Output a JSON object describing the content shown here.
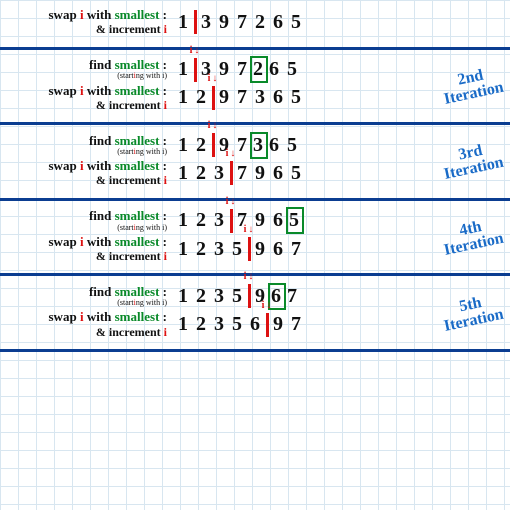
{
  "colors": {
    "divider": "#0b3d91",
    "grid": "#d8e6f0",
    "text": "#111",
    "smallest": "#0a8a2a",
    "i": "#d11",
    "iteration_label": "#1a6bc7",
    "box": "#0a8a2a"
  },
  "labels": {
    "find_prefix": "find ",
    "smallest_word": "smallest",
    "starting_sub": "(starting with i)",
    "swap_prefix": "swap ",
    "i_word": "i",
    "swap_mid": " with ",
    "swap_end": " :",
    "increment": "& increment ",
    "colon": " :",
    "pointer": "i↓"
  },
  "iterations": [
    {
      "label": "",
      "rows": [
        {
          "type": "swap",
          "cursor_after": 1,
          "values": [
            "1",
            "3",
            "9",
            "7",
            "2",
            "6",
            "5"
          ],
          "ptr_on": null,
          "box_on": null
        }
      ]
    },
    {
      "label": "2nd\nIteration",
      "rows": [
        {
          "type": "find",
          "cursor_after": 1,
          "values": [
            "1",
            "3",
            "9",
            "7",
            "2",
            "6",
            "5"
          ],
          "ptr_on": 1,
          "box_on": 4
        },
        {
          "type": "swap",
          "cursor_after": 2,
          "values": [
            "1",
            "2",
            "9",
            "7",
            "3",
            "6",
            "5"
          ],
          "ptr_on": 2,
          "box_on": null
        }
      ]
    },
    {
      "label": "3rd\nIteration",
      "rows": [
        {
          "type": "find",
          "cursor_after": 2,
          "values": [
            "1",
            "2",
            "9",
            "7",
            "3",
            "6",
            "5"
          ],
          "ptr_on": 2,
          "box_on": 4
        },
        {
          "type": "swap",
          "cursor_after": 3,
          "values": [
            "1",
            "2",
            "3",
            "7",
            "9",
            "6",
            "5"
          ],
          "ptr_on": 3,
          "box_on": null
        }
      ]
    },
    {
      "label": "4th\nIteration",
      "rows": [
        {
          "type": "find",
          "cursor_after": 3,
          "values": [
            "1",
            "2",
            "3",
            "7",
            "9",
            "6",
            "5"
          ],
          "ptr_on": 3,
          "box_on": 6
        },
        {
          "type": "swap",
          "cursor_after": 4,
          "values": [
            "1",
            "2",
            "3",
            "5",
            "9",
            "6",
            "7"
          ],
          "ptr_on": 4,
          "box_on": null
        }
      ]
    },
    {
      "label": "5th\nIteration",
      "rows": [
        {
          "type": "find",
          "cursor_after": 4,
          "values": [
            "1",
            "2",
            "3",
            "5",
            "9",
            "6",
            "7"
          ],
          "ptr_on": 4,
          "box_on": 5
        },
        {
          "type": "swap",
          "cursor_after": 5,
          "values": [
            "1",
            "2",
            "3",
            "5",
            "6",
            "9",
            "7"
          ],
          "ptr_on": 5,
          "box_on": null
        }
      ]
    }
  ]
}
